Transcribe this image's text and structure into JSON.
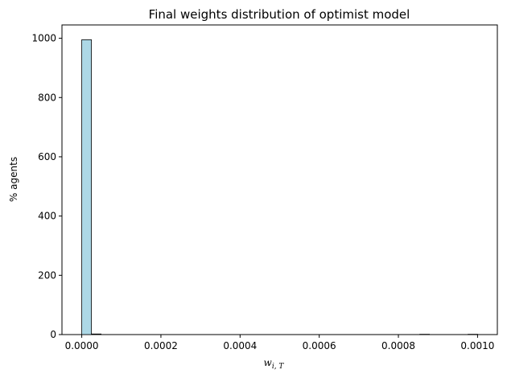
{
  "chart_data": {
    "type": "bar",
    "title": "Final weights distribution of optimist model",
    "xlabel_main": "w",
    "xlabel_sub": "i, T",
    "ylabel": "% agents",
    "xlim": [
      -5e-05,
      0.00105
    ],
    "ylim": [
      0,
      1045
    ],
    "bin_width": 2.44e-05,
    "bar_color": "#add8e6",
    "edge_color": "#000000",
    "x_ticks": [
      0.0,
      0.0002,
      0.0004,
      0.0006,
      0.0008,
      0.001
    ],
    "x_tick_labels": [
      "0.0000",
      "0.0002",
      "0.0004",
      "0.0006",
      "0.0008",
      "0.0010"
    ],
    "y_ticks": [
      0,
      200,
      400,
      600,
      800,
      1000
    ],
    "y_tick_labels": [
      "0",
      "200",
      "400",
      "600",
      "800",
      "1000"
    ],
    "bins": [
      {
        "x": 0.0,
        "value": 995
      },
      {
        "x": 2.44e-05,
        "value": 2
      },
      {
        "x": 0.000854,
        "value": 1
      },
      {
        "x": 0.000976,
        "value": 1
      }
    ]
  }
}
